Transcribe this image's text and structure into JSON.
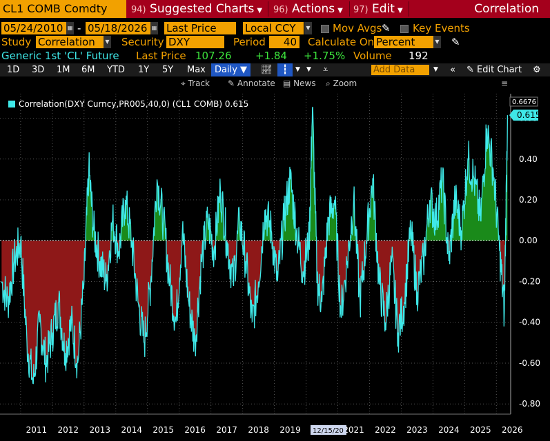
{
  "header": {
    "ticker": "CL1 COMB Comdty",
    "menu": [
      {
        "num": "94)",
        "label": "Suggested Charts"
      },
      {
        "num": "96)",
        "label": "Actions"
      },
      {
        "num": "97)",
        "label": "Edit"
      }
    ],
    "title": "Correlation"
  },
  "controls": {
    "start_date": "05/24/2010",
    "date_sep": "-",
    "end_date": "05/18/2026",
    "price_field": "Last Price",
    "currency": "Local CCY",
    "mov_avgs": "Mov Avgs",
    "key_events": "Key Events",
    "study_label": "Study",
    "study": "Correlation",
    "security_label": "Security",
    "security": "DXY Curncy",
    "period_label": "Period",
    "period": "40",
    "calc_label": "Calculate On",
    "calc": "Percent"
  },
  "quote": {
    "name": "Generic 1st 'CL' Future",
    "last_price_label": "Last Price",
    "last_price": "107.26",
    "change": "+1.84",
    "change_pct": "+1.75%",
    "volume_label": "Volume",
    "volume": "192"
  },
  "periods": [
    "1D",
    "3D",
    "1M",
    "6M",
    "YTD",
    "1Y",
    "5Y",
    "Max"
  ],
  "frequency": "Daily",
  "add_data": "Add Data",
  "edit_chart": "Edit Chart",
  "tools": [
    "Track",
    "Annotate",
    "News",
    "Zoom"
  ],
  "colors": {
    "line": "#3fe8e8",
    "positive": "#1a8a1a",
    "negative": "#8e1818",
    "accent": "#f2a100"
  },
  "chart_data": {
    "type": "area",
    "legend": "Correlation(DXY Curncy,PR005,40,0) (CL1 COMB) 0.615",
    "last_value_label": "0.615",
    "max_label": "0.6676",
    "ylim": [
      -0.85,
      0.72
    ],
    "y_ticks": [
      -0.8,
      -0.6,
      -0.4,
      -0.2,
      0.0,
      0.2,
      0.4,
      0.6
    ],
    "x_ticks": [
      "2011",
      "2012",
      "2013",
      "2014",
      "2015",
      "2016",
      "2017",
      "2018",
      "2019",
      "2020",
      "2021",
      "2022",
      "2023",
      "2024",
      "2025",
      "2026"
    ],
    "cursor_label": "12/15/20",
    "series": [
      {
        "x": [
          2010.4,
          2010.6,
          2010.8,
          2011.0,
          2011.2,
          2011.4,
          2011.6,
          2011.8,
          2012.0,
          2012.2,
          2012.4,
          2012.6,
          2012.8,
          2013.0,
          2013.15,
          2013.3,
          2013.5,
          2013.7,
          2013.9,
          2014.1,
          2014.3,
          2014.5,
          2014.7,
          2014.9,
          2015.1,
          2015.3,
          2015.5,
          2015.7,
          2015.9,
          2016.1,
          2016.3,
          2016.5,
          2016.7,
          2016.9,
          2017.1,
          2017.3,
          2017.5,
          2017.7,
          2017.9,
          2018.1,
          2018.3,
          2018.5,
          2018.7,
          2018.9,
          2019.1,
          2019.3,
          2019.5,
          2019.7,
          2019.9,
          2020.1,
          2020.2,
          2020.35,
          2020.5,
          2020.7,
          2020.9,
          2021.1,
          2021.3,
          2021.5,
          2021.7,
          2021.9,
          2022.1,
          2022.3,
          2022.5,
          2022.7,
          2022.9,
          2023.1,
          2023.3,
          2023.5,
          2023.7,
          2023.9,
          2024.1,
          2024.3,
          2024.5,
          2024.7,
          2024.9,
          2025.1,
          2025.3,
          2025.5,
          2025.7,
          2025.9,
          2026.1,
          2026.25,
          2026.35
        ],
        "y": [
          -0.2,
          -0.3,
          -0.1,
          0.0,
          -0.5,
          -0.7,
          -0.4,
          -0.6,
          -0.45,
          -0.3,
          -0.55,
          -0.4,
          -0.6,
          -0.2,
          0.35,
          0.05,
          -0.1,
          -0.2,
          0.1,
          -0.05,
          0.2,
          0.0,
          -0.3,
          -0.5,
          -0.2,
          0.3,
          0.1,
          -0.2,
          -0.4,
          0.05,
          -0.3,
          -0.5,
          -0.1,
          0.1,
          -0.05,
          0.25,
          0.0,
          -0.2,
          0.1,
          -0.1,
          -0.4,
          -0.2,
          0.15,
          0.05,
          -0.2,
          0.1,
          0.3,
          0.05,
          -0.15,
          0.0,
          0.65,
          -0.2,
          -0.3,
          0.1,
          0.2,
          -0.35,
          -0.1,
          0.2,
          -0.3,
          0.0,
          0.3,
          -0.2,
          -0.4,
          -0.1,
          -0.45,
          -0.3,
          0.05,
          -0.25,
          -0.1,
          0.2,
          0.1,
          0.3,
          -0.1,
          0.2,
          0.05,
          0.4,
          0.3,
          0.1,
          0.55,
          0.35,
          -0.05,
          -0.35,
          0.615
        ]
      }
    ]
  }
}
